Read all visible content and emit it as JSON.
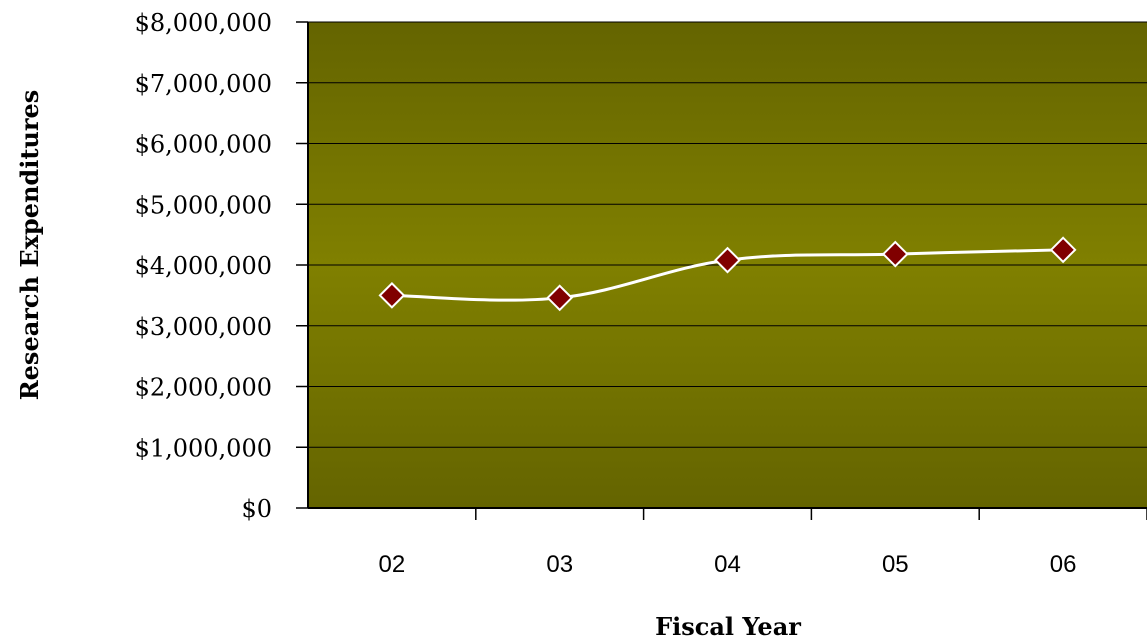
{
  "chart_data": {
    "type": "line",
    "title": "",
    "xlabel": "Fiscal Year",
    "ylabel": "Research Expenditures",
    "categories": [
      "02",
      "03",
      "04",
      "05",
      "06"
    ],
    "values": [
      3500000,
      3460000,
      4080000,
      4180000,
      4250000
    ],
    "ylim": [
      0,
      8000000
    ],
    "yticks": [
      0,
      1000000,
      2000000,
      3000000,
      4000000,
      5000000,
      6000000,
      7000000,
      8000000
    ],
    "ytick_labels": [
      "$0",
      "$1,000,000",
      "$2,000,000",
      "$3,000,000",
      "$4,000,000",
      "$5,000,000",
      "$6,000,000",
      "$7,000,000",
      "$8,000,000"
    ],
    "grid": true,
    "legend": "none",
    "colors": {
      "plot_center": "#808000",
      "plot_edge": "#646400",
      "line": "#ffffff",
      "marker_fill": "#800000",
      "marker_stroke": "#ffffff",
      "gridline": "#000000"
    }
  }
}
